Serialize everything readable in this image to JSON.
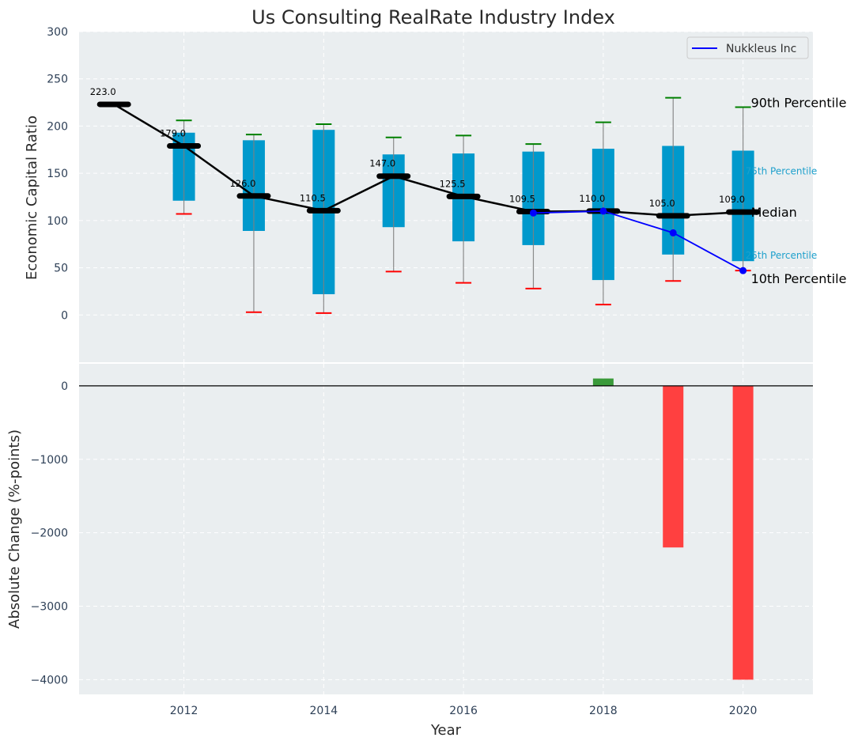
{
  "chart_data": [
    {
      "type": "box-range",
      "title": "Us Consulting RealRate Industry Index",
      "xlabel": "",
      "ylabel": "Economic Capital Ratio",
      "xlim": [
        2010.5,
        2021.0
      ],
      "ylim": [
        -50,
        300
      ],
      "yticks": [
        0,
        50,
        100,
        150,
        200,
        250,
        300
      ],
      "grid": true,
      "legend": {
        "placement": "top-right",
        "entries": [
          {
            "label": "Nukkleus Inc",
            "color": "#0000ff"
          }
        ]
      },
      "x": [
        2011,
        2012,
        2013,
        2014,
        2015,
        2016,
        2017,
        2018,
        2019,
        2020
      ],
      "median": [
        223.0,
        179.0,
        126.0,
        110.5,
        147.0,
        125.5,
        109.5,
        110.0,
        105.0,
        109.0
      ],
      "median_labels": [
        "223.0",
        "179.0",
        "126.0",
        "110.5",
        "147.0",
        "125.5",
        "109.5",
        "110.0",
        "105.0",
        "109.0"
      ],
      "p90": [
        null,
        206,
        191,
        202,
        188,
        190,
        181,
        204,
        230,
        220
      ],
      "p75": [
        null,
        193,
        185,
        196,
        170,
        171,
        173,
        176,
        179,
        174
      ],
      "p25": [
        null,
        121,
        89,
        22,
        93,
        78,
        74,
        37,
        64,
        57
      ],
      "p10": [
        null,
        107,
        3,
        2,
        46,
        34,
        28,
        11,
        36,
        47
      ],
      "company_series": {
        "name": "Nukkleus Inc",
        "x": [
          2017,
          2018,
          2019,
          2020
        ],
        "values": [
          108,
          110,
          87,
          47
        ],
        "color": "#0000ff"
      },
      "annotations": {
        "p90": "90th Percentile",
        "p75": "75th Percentile",
        "median": "Median",
        "p25": "25th Percentile",
        "p10": "10th Percentile"
      },
      "colors": {
        "box": "#0099cc",
        "median": "#000000",
        "p90_cap": "#008000",
        "p10_cap": "#ff0000",
        "whisker": "#808080",
        "background": "#eaeef0"
      }
    },
    {
      "type": "bar",
      "title": "",
      "xlabel": "Year",
      "ylabel": "Absolute Change (%-points)",
      "xlim": [
        2010.5,
        2021.0
      ],
      "ylim": [
        -4200,
        300
      ],
      "yticks": [
        0,
        -1000,
        -2000,
        -3000,
        -4000
      ],
      "ytick_labels": [
        "0",
        "−1000",
        "−2000",
        "−3000",
        "−4000"
      ],
      "xticks": [
        2012,
        2014,
        2016,
        2018,
        2020
      ],
      "xtick_labels": [
        "2012",
        "2014",
        "2016",
        "2018",
        "2020"
      ],
      "grid": true,
      "categories": [
        2018,
        2019,
        2020
      ],
      "values": [
        100,
        -2200,
        -4000
      ],
      "colors": {
        "positive": "#3a9a3a",
        "negative": "#ff4040",
        "zero_line": "#000000"
      }
    }
  ]
}
